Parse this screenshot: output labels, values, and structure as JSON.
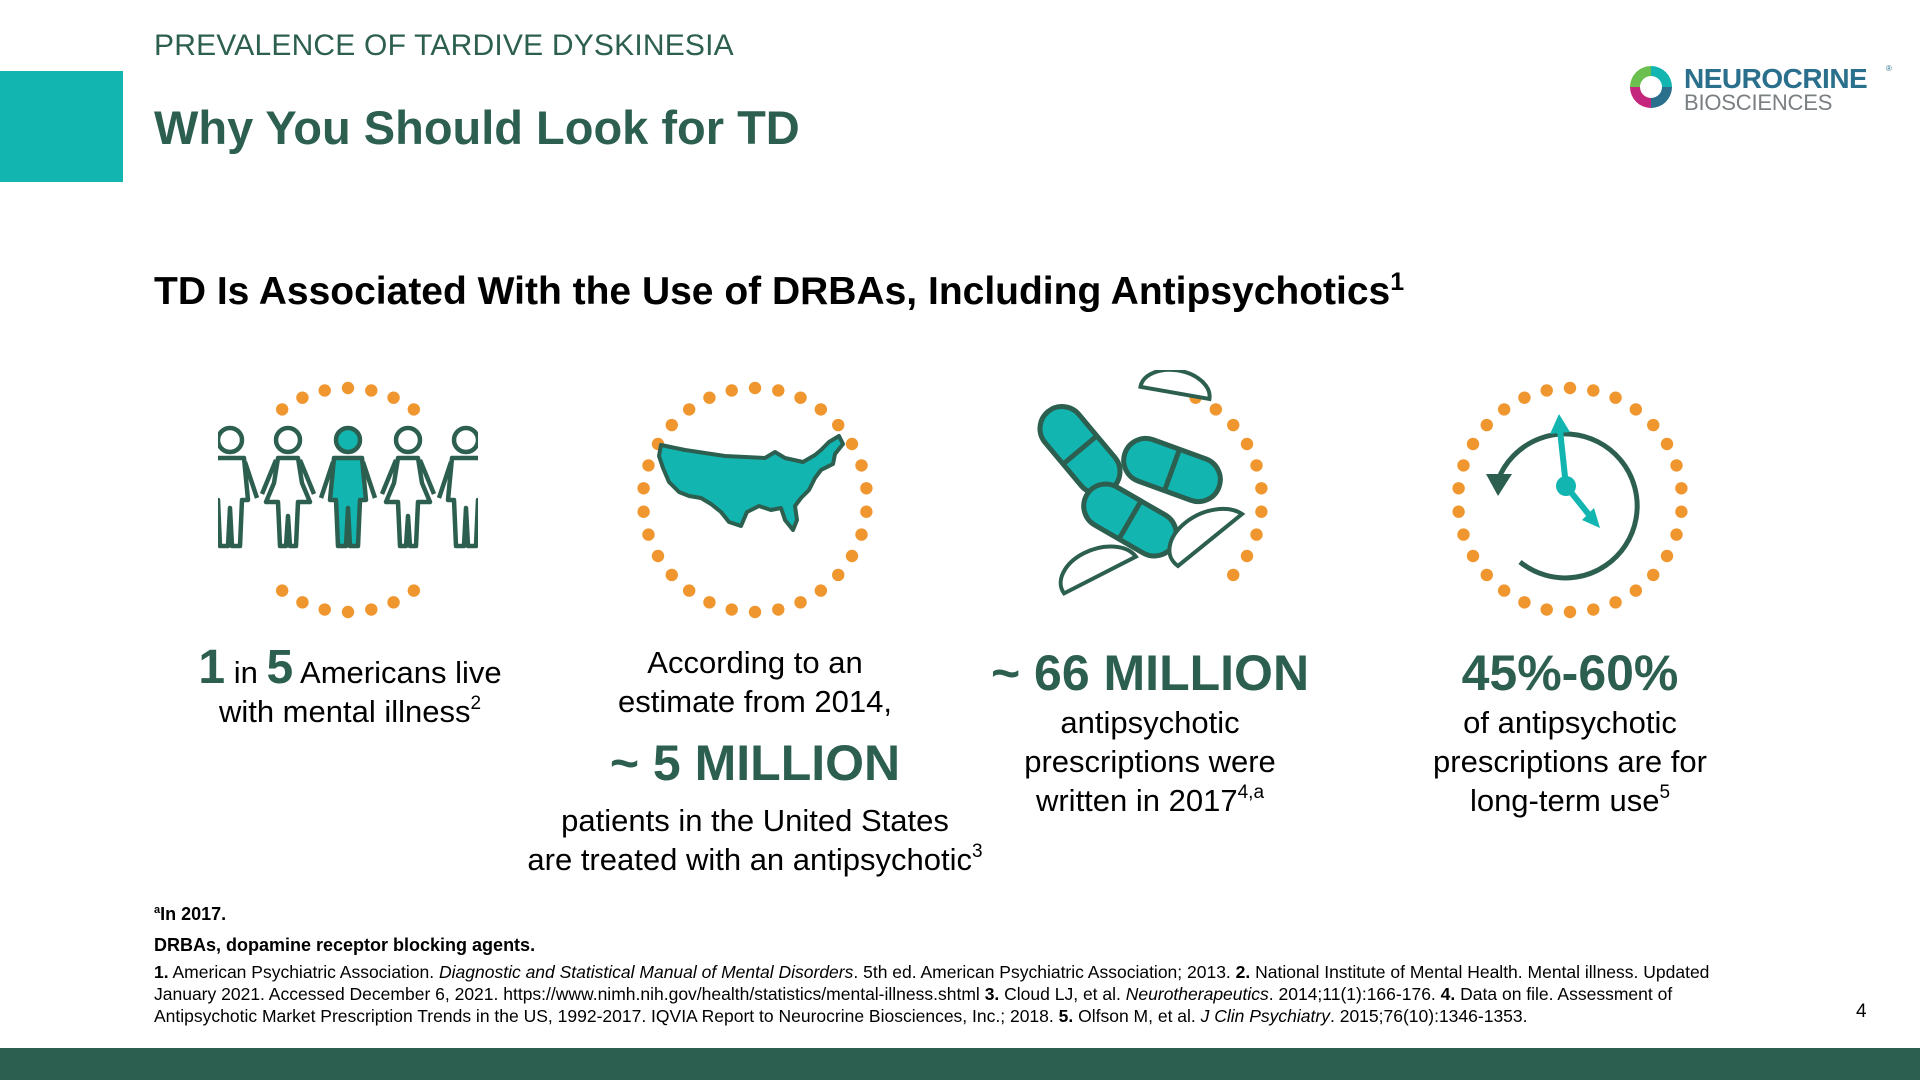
{
  "header": {
    "kicker": "PREVALENCE OF TARDIVE DYSKINESIA",
    "title": "Why You Should Look for TD"
  },
  "logo": {
    "name": "NEUROCRINE",
    "trademark": "®",
    "sub": "BIOSCIENCES",
    "icon": "swirl-logo-icon"
  },
  "subheading": {
    "text": "TD Is Associated With the Use of DRBAs, Including Antipsychotics",
    "sup": "1"
  },
  "colors": {
    "teal": "#13b5b1",
    "dark_green": "#2c5f4f",
    "orange": "#f0962f"
  },
  "stats": [
    {
      "icon": "people-icon",
      "num1": "1",
      "text_in": " in ",
      "num2": "5",
      "text_a": " Americans live",
      "text_b": "with mental illness",
      "sup": "2"
    },
    {
      "icon": "usa-map-icon",
      "intro1": "According to an",
      "intro2": "estimate from 2014,",
      "big": "~ 5 MILLION",
      "line1": "patients in the United States",
      "line2": "are treated with an antipsychotic",
      "sup": "3"
    },
    {
      "icon": "pills-icon",
      "big": "~ 66 MILLION",
      "line1": "antipsychotic",
      "line2": "prescriptions were",
      "line3": "written in 2017",
      "sup": "4,a"
    },
    {
      "icon": "clock-icon",
      "big": "45%-60%",
      "line1": "of antipsychotic",
      "line2": "prescriptions are for",
      "line3": "long-term use",
      "sup": "5"
    }
  ],
  "footnotes": {
    "a_mark": "a",
    "a_text": "In 2017.",
    "abbrev": "DRBAs, dopamine receptor blocking agents.",
    "refs": [
      {
        "n": "1.",
        "pre": " American Psychiatric Association. ",
        "it": "Diagnostic and Statistical Manual of Mental Disorders",
        "post": ". 5th ed. American Psychiatric Association; 2013. "
      },
      {
        "n": "2.",
        "pre": " National Institute of Mental Health. Mental illness. Updated January 2021. Accessed December 6, 2021. https://www.nimh.nih.gov/health/statistics/mental-illness.shtml ",
        "it": "",
        "post": ""
      },
      {
        "n": "3.",
        "pre": " Cloud LJ, et al. ",
        "it": "Neurotherapeutics",
        "post": ". 2014;11(1):166-176. "
      },
      {
        "n": "4.",
        "pre": " Data on file. Assessment of Antipsychotic Market Prescription Trends in the US, 1992-2017. IQVIA Report to Neurocrine Biosciences, Inc.; 2018. ",
        "it": "",
        "post": ""
      },
      {
        "n": "5.",
        "pre": " Olfson M, et al. ",
        "it": "J Clin Psychiatry",
        "post": ". 2015;76(10):1346-1353."
      }
    ]
  },
  "page_number": "4"
}
